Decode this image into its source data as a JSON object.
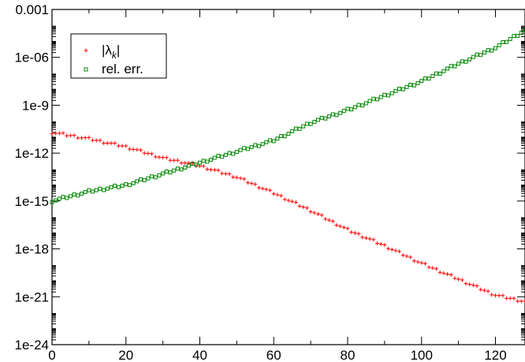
{
  "chart_data": {
    "type": "scatter",
    "title": "",
    "xlabel": "",
    "ylabel": "",
    "x_scale": "linear",
    "y_scale": "log",
    "xlim": [
      0,
      128
    ],
    "ylim": [
      1e-24,
      0.001
    ],
    "x_ticks": [
      0,
      20,
      40,
      60,
      80,
      100,
      120
    ],
    "x_tick_labels": [
      "0",
      "20",
      "40",
      "60",
      "80",
      "100",
      "120"
    ],
    "y_ticks": [
      1e-24,
      1e-21,
      1e-18,
      1e-15,
      1e-12,
      1e-09,
      1e-06,
      0.001
    ],
    "y_tick_labels": [
      "1e-24",
      "1e-21",
      "1e-18",
      "1e-15",
      "1e-12",
      "1e-9",
      "1e-06",
      "0.001"
    ],
    "grid": false,
    "legend_position": "top-left",
    "series": [
      {
        "name": "|λk|",
        "legend_main": "|λ",
        "legend_sub": "k",
        "legend_tail": "|",
        "marker": "cross",
        "color": "#ff0000",
        "log10_x": [
          0,
          10,
          20,
          30,
          40,
          50,
          60,
          70,
          80,
          90,
          100,
          110,
          120,
          128
        ],
        "log10_y": [
          -10.7,
          -11.1,
          -11.6,
          -12.3,
          -12.8,
          -13.5,
          -14.5,
          -15.6,
          -16.8,
          -17.8,
          -18.9,
          -19.9,
          -20.9,
          -21.3
        ],
        "n": 129
      },
      {
        "name": "rel. err.",
        "marker": "square",
        "color": "#008800",
        "log10_x": [
          0,
          10,
          20,
          30,
          40,
          50,
          60,
          70,
          80,
          90,
          100,
          110,
          120,
          128
        ],
        "log10_y": [
          -15.0,
          -14.4,
          -14.0,
          -13.3,
          -12.6,
          -11.9,
          -11.2,
          -10.1,
          -9.3,
          -8.4,
          -7.5,
          -6.4,
          -5.4,
          -4.3
        ],
        "n": 129
      }
    ]
  }
}
